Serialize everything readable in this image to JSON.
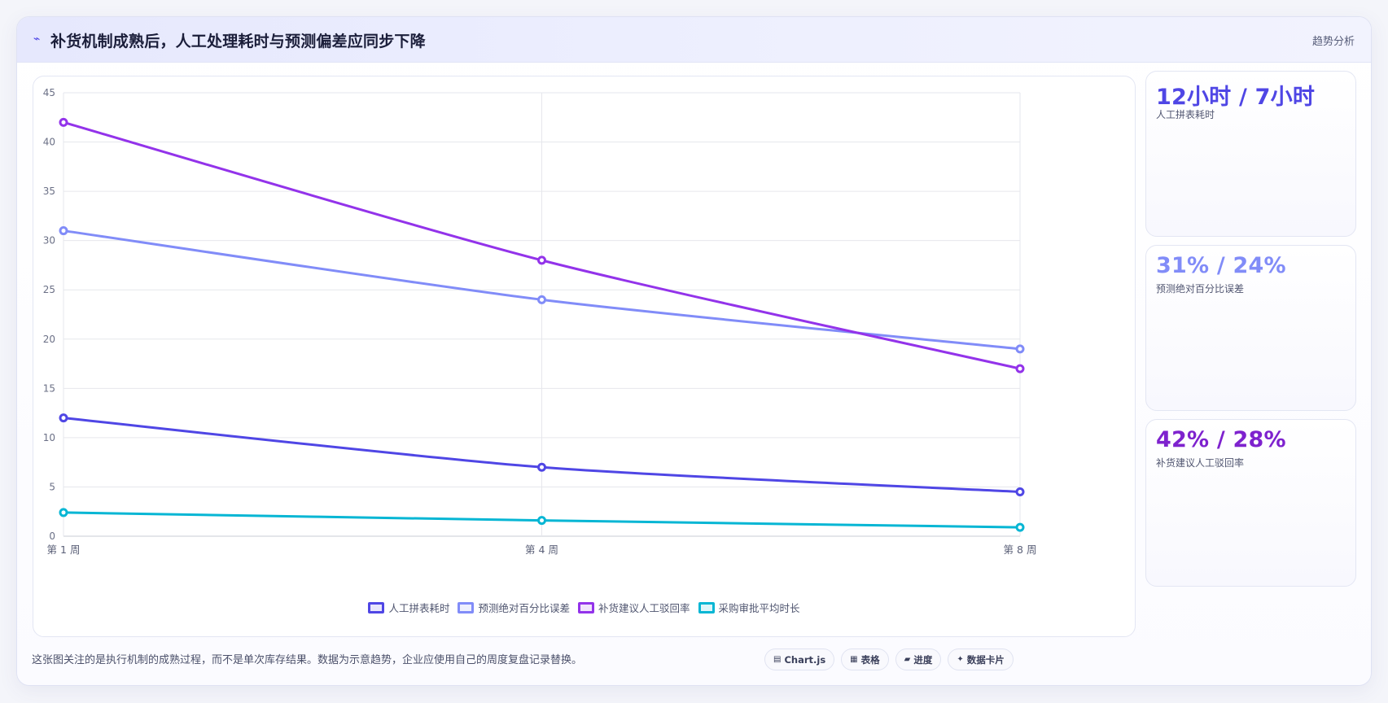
{
  "header": {
    "icon": "trend-line-icon",
    "title": "补货机制成熟后，人工处理耗时与预测偏差应同步下降",
    "tag": "趋势分析"
  },
  "chart_data": {
    "type": "line",
    "title": "",
    "xlabel": "",
    "ylabel": "",
    "categories": [
      "第 1 周",
      "第 4 周",
      "第 8 周"
    ],
    "ylim": [
      0,
      45
    ],
    "yticks": [
      0,
      5,
      10,
      15,
      20,
      25,
      30,
      35,
      40,
      45
    ],
    "grid": true,
    "legend_position": "bottom",
    "series": [
      {
        "name": "人工拼表耗时",
        "values": [
          12,
          7,
          4.5
        ],
        "color": "#4f46e5"
      },
      {
        "name": "预测绝对百分比误差",
        "values": [
          31,
          24,
          19
        ],
        "color": "#818cf8"
      },
      {
        "name": "补货建议人工驳回率",
        "values": [
          42,
          28,
          17
        ],
        "color": "#9333ea"
      },
      {
        "name": "采购审批平均时长",
        "values": [
          2.4,
          1.6,
          0.9
        ],
        "color": "#06b6d4"
      }
    ]
  },
  "stats": [
    {
      "value": "12小时 / 7小时",
      "label": "人工拼表耗时",
      "color": "#4f46e5"
    },
    {
      "value": "31% / 24%",
      "label": "预测绝对百分比误差",
      "color": "#818cf8"
    },
    {
      "value": "42% / 28%",
      "label": "补货建议人工驳回率",
      "color": "#7e22ce"
    }
  ],
  "footer": {
    "note": "这张图关注的是执行机制的成熟过程，而不是单次库存结果。数据为示意趋势，企业应使用自己的周度复盘记录替换。",
    "chips": [
      {
        "icon": "▤",
        "label": "Chart.js"
      },
      {
        "icon": "▦",
        "label": "表格"
      },
      {
        "icon": "▰",
        "label": "进度"
      },
      {
        "icon": "✦",
        "label": "数据卡片"
      }
    ]
  }
}
